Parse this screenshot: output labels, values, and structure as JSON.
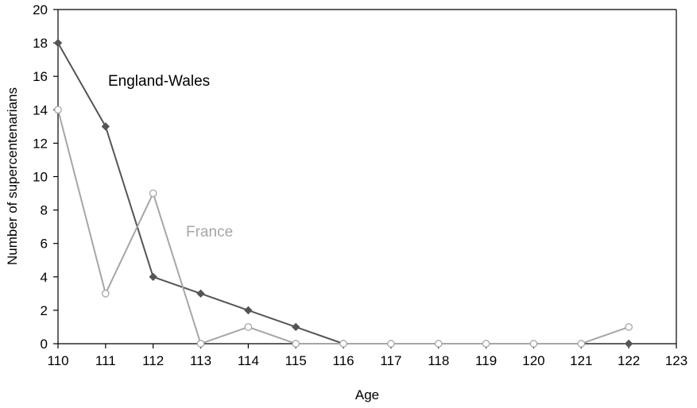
{
  "chart_data": {
    "type": "line",
    "xlabel": "Age",
    "ylabel": "Number of supercentenarians",
    "xlim": [
      110,
      123
    ],
    "ylim": [
      0,
      20
    ],
    "x_ticks": [
      110,
      111,
      112,
      113,
      114,
      115,
      116,
      117,
      118,
      119,
      120,
      121,
      122,
      123
    ],
    "y_ticks": [
      0,
      2,
      4,
      6,
      8,
      10,
      12,
      14,
      16,
      18,
      20
    ],
    "grid": false,
    "series": [
      {
        "name": "England-Wales",
        "color": "#555555",
        "marker": "filled-diamond",
        "x": [
          110,
          111,
          112,
          113,
          114,
          115,
          116,
          122
        ],
        "values": [
          18,
          13,
          4,
          3,
          2,
          1,
          0,
          0
        ]
      },
      {
        "name": "France",
        "color": "#a6a6a6",
        "marker": "open-circle",
        "x": [
          110,
          111,
          112,
          113,
          114,
          115,
          116,
          117,
          118,
          119,
          120,
          121,
          122
        ],
        "values": [
          14,
          3,
          9,
          0,
          1,
          0,
          0,
          0,
          0,
          0,
          0,
          0,
          1
        ]
      }
    ]
  }
}
